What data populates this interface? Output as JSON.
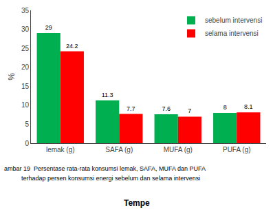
{
  "chart_data": {
    "type": "bar",
    "categories": [
      "lemak (g)",
      "SAFA (g)",
      "MUFA (g)",
      "PUFA (g)"
    ],
    "series": [
      {
        "name": "sebelum intervensi",
        "color": "#00b050",
        "values": [
          29,
          11.3,
          7.6,
          8
        ]
      },
      {
        "name": "selama intervensi",
        "color": "#ff0000",
        "values": [
          24.2,
          7.7,
          7,
          8.1
        ]
      }
    ],
    "ylabel": "%",
    "ylim": [
      0,
      35
    ],
    "yticks": [
      0,
      5,
      10,
      15,
      20,
      25,
      30,
      35
    ],
    "data_labels": true,
    "legend": "upper right",
    "grid": false,
    "annotations": [
      "ambar 19  Persentase rata-rata konsumsi lemak, SAFA, MUFA dan PUFA",
      "          terhadap persen konsumsi energi sebelum dan selama intervensi",
      "Tempe"
    ]
  }
}
